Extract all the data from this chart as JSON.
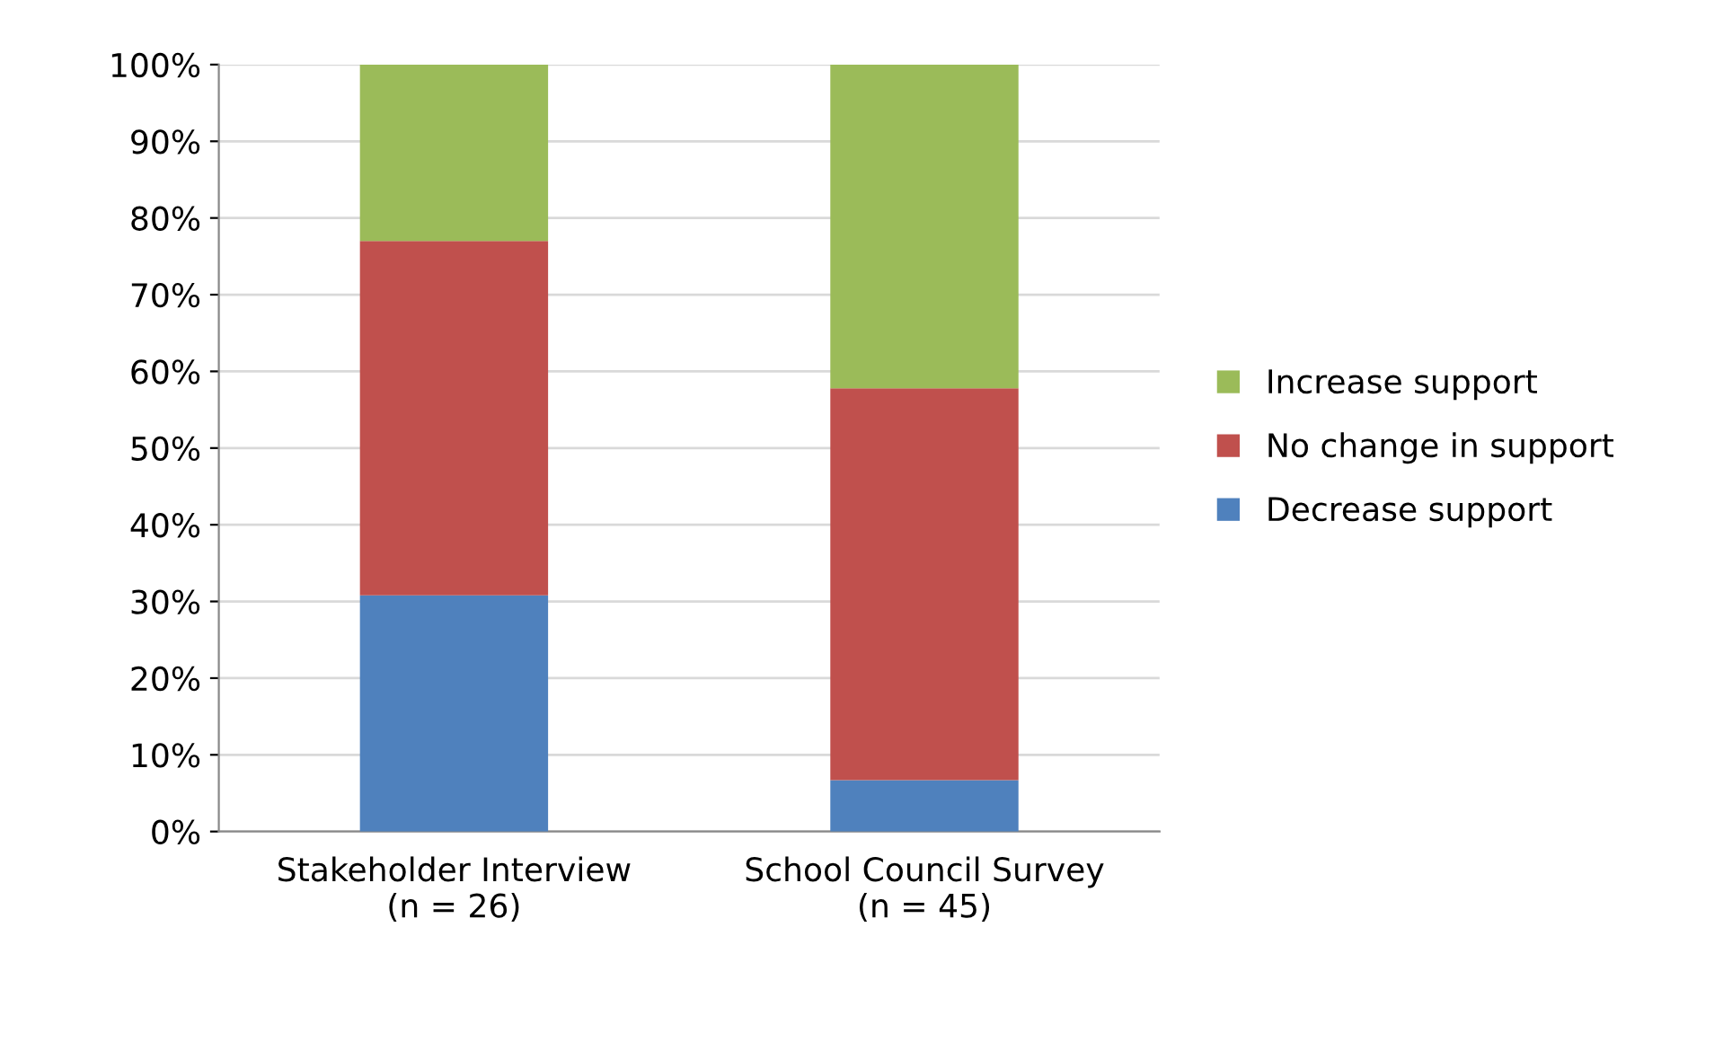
{
  "chart_data": {
    "type": "bar",
    "stacked": true,
    "categories": [
      "Stakeholder Interview\n(n = 26)",
      "School Council Survey\n(n = 45)"
    ],
    "series": [
      {
        "name": "Decrease support",
        "color": "#4f81bd",
        "values": [
          30.8,
          6.7
        ]
      },
      {
        "name": "No change in support",
        "color": "#c0504d",
        "values": [
          46.2,
          51.1
        ]
      },
      {
        "name": "Increase support",
        "color": "#9bbb59",
        "values": [
          23.0,
          42.2
        ]
      }
    ],
    "ylim": [
      0,
      100
    ],
    "yticks": [
      {
        "value": 0,
        "label": "0%"
      },
      {
        "value": 10,
        "label": "10%"
      },
      {
        "value": 20,
        "label": "20%"
      },
      {
        "value": 30,
        "label": "30%"
      },
      {
        "value": 40,
        "label": "40%"
      },
      {
        "value": 50,
        "label": "50%"
      },
      {
        "value": 60,
        "label": "60%"
      },
      {
        "value": 70,
        "label": "70%"
      },
      {
        "value": 80,
        "label": "80%"
      },
      {
        "value": 90,
        "label": "90%"
      },
      {
        "value": 100,
        "label": "100%"
      }
    ],
    "grid": "y",
    "legend": "right"
  }
}
